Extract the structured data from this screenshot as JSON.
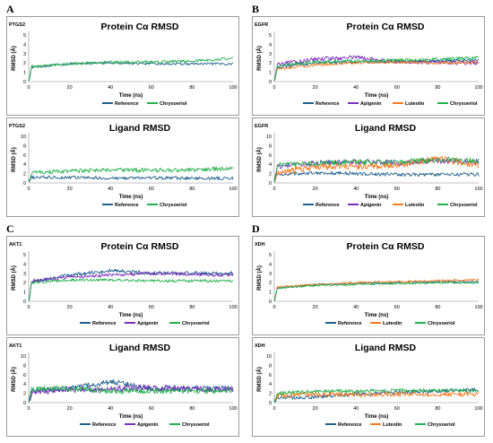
{
  "panels": [
    {
      "letter": "A",
      "subplots": [
        "a_prot",
        "a_lig"
      ]
    },
    {
      "letter": "B",
      "subplots": [
        "b_prot",
        "b_lig"
      ]
    },
    {
      "letter": "C",
      "subplots": [
        "c_prot",
        "c_lig"
      ]
    },
    {
      "letter": "D",
      "subplots": [
        "d_prot",
        "d_lig"
      ]
    }
  ],
  "colors": {
    "Reference": "#1f5f8b",
    "Apigenin": "#7b2fbf",
    "Luteolin": "#f47a20",
    "Chrysoeriol": "#22b14c"
  },
  "chart_data": [
    {
      "id": "a_prot",
      "type": "line",
      "protein": "PTGS2",
      "title": "Protein Cα RMSD",
      "xlabel": "Time (ns)",
      "ylabel": "RMSD (Å)",
      "xlim": [
        0,
        100
      ],
      "ylim": [
        0,
        5
      ],
      "xticks": [
        0,
        20,
        40,
        60,
        80,
        100
      ],
      "yticks": [
        0,
        1,
        2,
        3,
        4,
        5
      ],
      "series": [
        {
          "name": "Reference",
          "mean": [
            1.5,
            1.9,
            2.0,
            1.9,
            1.9,
            1.9
          ],
          "noise": 0.12
        },
        {
          "name": "Chrysoeriol",
          "mean": [
            1.6,
            1.9,
            2.1,
            2.1,
            2.2,
            2.5
          ],
          "noise": 0.15
        }
      ]
    },
    {
      "id": "a_lig",
      "type": "line",
      "protein": "PTGS2",
      "title": "Ligand RMSD",
      "xlabel": "Time (ns)",
      "ylabel": "RMSD (Å)",
      "xlim": [
        0,
        100
      ],
      "ylim": [
        0,
        10
      ],
      "xticks": [
        0,
        20,
        40,
        60,
        80,
        100
      ],
      "yticks": [
        0,
        2,
        4,
        6,
        8,
        10
      ],
      "series": [
        {
          "name": "Reference",
          "mean": [
            1.2,
            1.2,
            1.0,
            1.1,
            1.0,
            1.0
          ],
          "noise": 0.35
        },
        {
          "name": "Chrysoeriol",
          "mean": [
            2.2,
            2.5,
            2.8,
            2.7,
            2.8,
            3.2
          ],
          "noise": 0.45
        }
      ]
    },
    {
      "id": "b_prot",
      "type": "line",
      "protein": "EGFR",
      "title": "Protein Cα RMSD",
      "xlabel": "Time (ns)",
      "ylabel": "RMSD (Å)",
      "xlim": [
        0,
        100
      ],
      "ylim": [
        0,
        5
      ],
      "xticks": [
        0,
        20,
        40,
        60,
        80,
        100
      ],
      "yticks": [
        0,
        1,
        2,
        3,
        4,
        5
      ],
      "series": [
        {
          "name": "Reference",
          "mean": [
            1.5,
            2.0,
            2.1,
            2.1,
            2.2,
            2.3
          ],
          "noise": 0.15
        },
        {
          "name": "Apigenin",
          "mean": [
            1.8,
            2.4,
            2.6,
            2.1,
            2.1,
            2.0
          ],
          "noise": 0.22
        },
        {
          "name": "Luteolin",
          "mean": [
            1.3,
            1.8,
            2.0,
            2.1,
            2.0,
            2.1
          ],
          "noise": 0.15
        },
        {
          "name": "Chrysoeriol",
          "mean": [
            1.6,
            2.1,
            2.2,
            2.3,
            2.4,
            2.6
          ],
          "noise": 0.18
        }
      ]
    },
    {
      "id": "b_lig",
      "type": "line",
      "protein": "EGFR",
      "title": "Ligand RMSD",
      "xlabel": "Time (ns)",
      "ylabel": "RMSD (Å)",
      "xlim": [
        0,
        100
      ],
      "ylim": [
        0,
        10
      ],
      "xticks": [
        0,
        20,
        40,
        60,
        80,
        100
      ],
      "yticks": [
        0,
        2,
        4,
        6,
        8,
        10
      ],
      "series": [
        {
          "name": "Reference",
          "mean": [
            1.8,
            2.2,
            2.0,
            1.8,
            1.8,
            1.8
          ],
          "noise": 0.4
        },
        {
          "name": "Apigenin",
          "mean": [
            3.5,
            4.2,
            4.5,
            4.3,
            4.8,
            4.5
          ],
          "noise": 0.6
        },
        {
          "name": "Luteolin",
          "mean": [
            2.0,
            3.5,
            3.5,
            3.8,
            5.2,
            3.8
          ],
          "noise": 0.7
        },
        {
          "name": "Chrysoeriol",
          "mean": [
            3.8,
            4.2,
            4.5,
            4.5,
            5.0,
            4.8
          ],
          "noise": 0.6
        }
      ]
    },
    {
      "id": "c_prot",
      "type": "line",
      "protein": "AKT1",
      "title": "Protein Cα RMSD",
      "xlabel": "Time (ns)",
      "ylabel": "RMSD (Å)",
      "xlim": [
        0,
        100
      ],
      "ylim": [
        0,
        5
      ],
      "xticks": [
        0,
        20,
        40,
        60,
        80,
        100
      ],
      "yticks": [
        0,
        1,
        2,
        3,
        4,
        5
      ],
      "series": [
        {
          "name": "Reference",
          "mean": [
            2.0,
            2.8,
            3.3,
            3.0,
            3.0,
            3.0
          ],
          "noise": 0.2
        },
        {
          "name": "Apigenin",
          "mean": [
            2.2,
            2.6,
            2.8,
            3.0,
            2.9,
            2.8
          ],
          "noise": 0.18
        },
        {
          "name": "Chrysoeriol",
          "mean": [
            2.0,
            2.3,
            2.3,
            2.2,
            2.2,
            2.2
          ],
          "noise": 0.15
        }
      ]
    },
    {
      "id": "c_lig",
      "type": "line",
      "protein": "AKT1",
      "title": "Ligand RMSD",
      "xlabel": "Time (ns)",
      "ylabel": "RMSD (Å)",
      "xlim": [
        0,
        100
      ],
      "ylim": [
        0,
        10
      ],
      "xticks": [
        0,
        20,
        40,
        60,
        80,
        100
      ],
      "yticks": [
        0,
        2,
        4,
        6,
        8,
        10
      ],
      "series": [
        {
          "name": "Reference",
          "mean": [
            2.5,
            3.0,
            4.5,
            3.0,
            3.0,
            3.0
          ],
          "noise": 0.6
        },
        {
          "name": "Apigenin",
          "mean": [
            2.0,
            2.8,
            3.0,
            3.2,
            3.0,
            2.8
          ],
          "noise": 0.7
        },
        {
          "name": "Chrysoeriol",
          "mean": [
            3.0,
            3.0,
            2.5,
            2.5,
            2.5,
            2.5
          ],
          "noise": 0.6
        }
      ]
    },
    {
      "id": "d_prot",
      "type": "line",
      "protein": "XDH",
      "title": "Protein Cα RMSD",
      "xlabel": "Time (ns)",
      "ylabel": "RMSD (Å)",
      "xlim": [
        0,
        100
      ],
      "ylim": [
        0,
        5
      ],
      "xticks": [
        0,
        20,
        40,
        60,
        80,
        100
      ],
      "yticks": [
        0,
        1,
        2,
        3,
        4,
        5
      ],
      "series": [
        {
          "name": "Reference",
          "mean": [
            1.4,
            1.8,
            1.9,
            2.0,
            2.1,
            2.1
          ],
          "noise": 0.1
        },
        {
          "name": "Luteolin",
          "mean": [
            1.5,
            1.8,
            2.0,
            2.1,
            2.2,
            2.3
          ],
          "noise": 0.12
        },
        {
          "name": "Chrysoeriol",
          "mean": [
            1.4,
            1.7,
            1.8,
            1.9,
            2.0,
            2.0
          ],
          "noise": 0.1
        }
      ]
    },
    {
      "id": "d_lig",
      "type": "line",
      "protein": "XDH",
      "title": "Ligand RMSD",
      "xlabel": "Time (ns)",
      "ylabel": "RMSD (Å)",
      "xlim": [
        0,
        100
      ],
      "ylim": [
        0,
        10
      ],
      "xticks": [
        0,
        20,
        40,
        60,
        80,
        100
      ],
      "yticks": [
        0,
        2,
        4,
        6,
        8,
        10
      ],
      "series": [
        {
          "name": "Reference",
          "mean": [
            1.0,
            1.2,
            1.8,
            2.2,
            2.5,
            2.8
          ],
          "noise": 0.4
        },
        {
          "name": "Luteolin",
          "mean": [
            1.5,
            1.8,
            1.6,
            1.8,
            1.8,
            1.8
          ],
          "noise": 0.5
        },
        {
          "name": "Chrysoeriol",
          "mean": [
            2.0,
            2.4,
            2.5,
            2.6,
            2.6,
            2.6
          ],
          "noise": 0.4
        }
      ]
    }
  ]
}
